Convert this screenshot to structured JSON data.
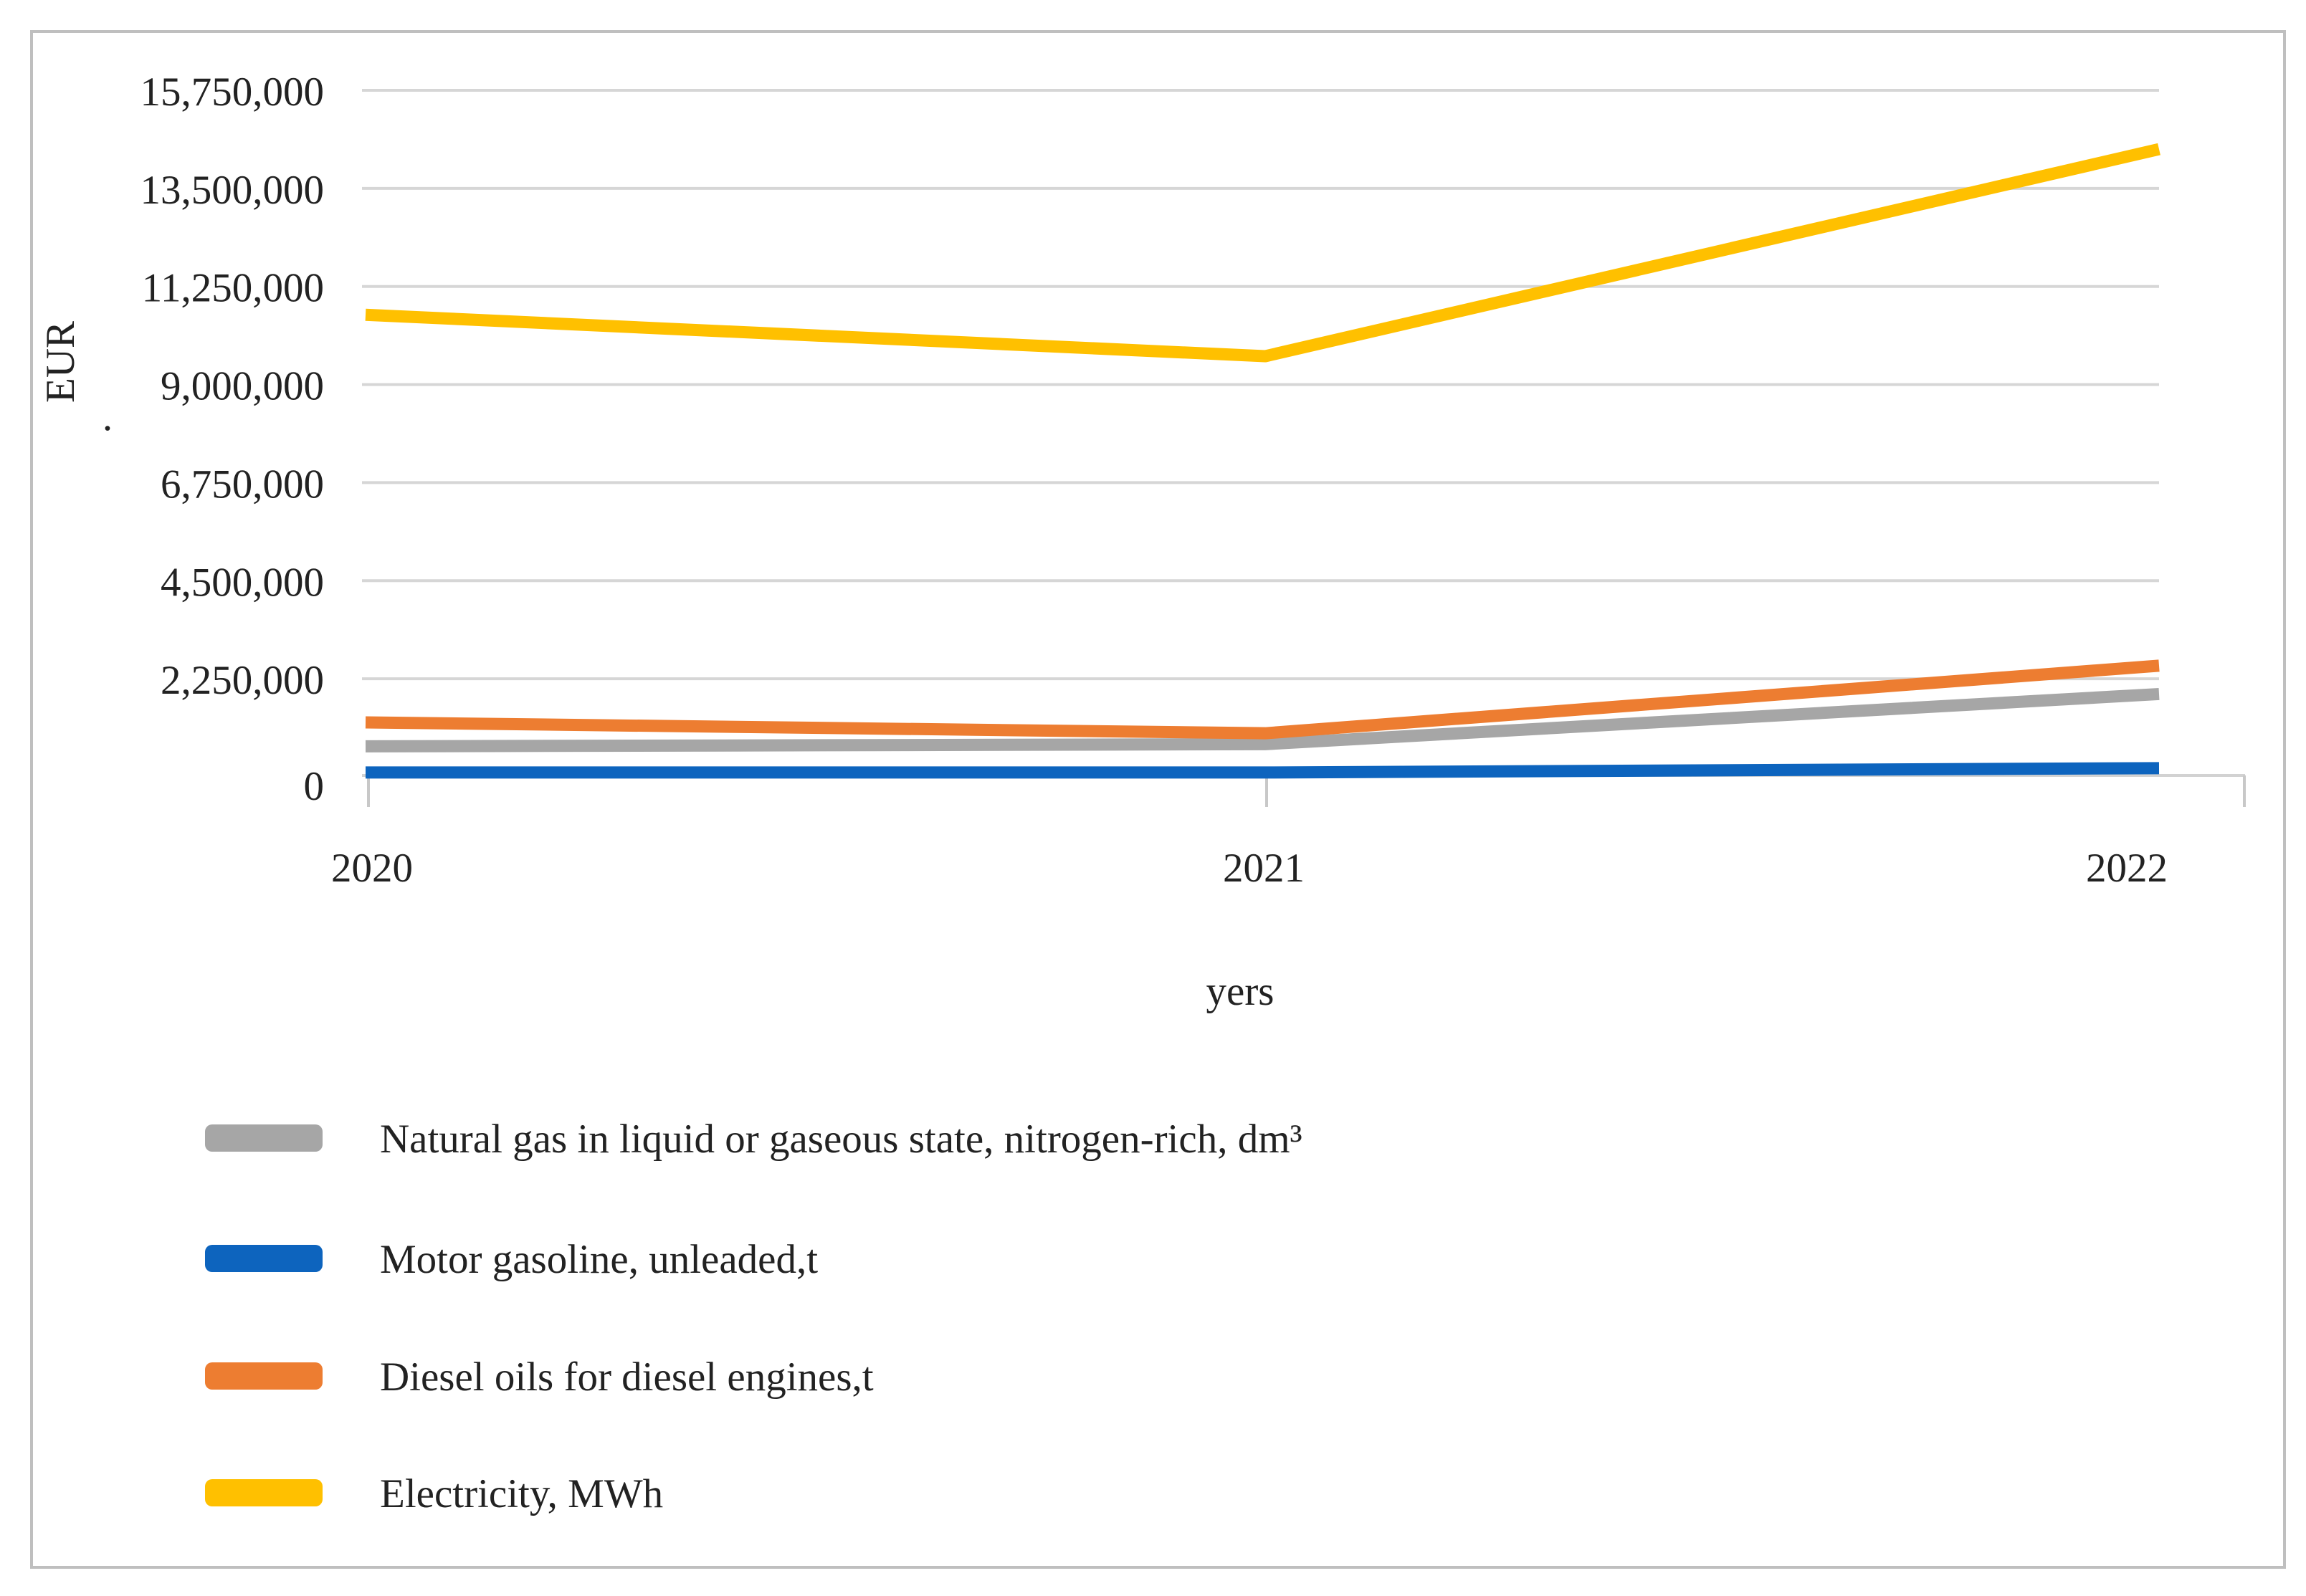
{
  "figure": {
    "background": "#ffffff",
    "border_color": "#bfbfbf"
  },
  "chart_data": {
    "type": "line",
    "title": "",
    "xlabel": "yers",
    "ylabel": "EUR",
    "ylabel_suffix_dot": ".",
    "categories": [
      "2020",
      "2021",
      "2022"
    ],
    "y_tick_labels": [
      "15,750,000",
      "13,500,000",
      "11,250,000",
      "9,000,000",
      "6,750,000",
      "4,500,000",
      "2,250,000",
      "0"
    ],
    "y_tick_values": [
      15750000,
      13500000,
      11250000,
      9000000,
      6750000,
      4500000,
      2250000,
      0
    ],
    "ylim": [
      0,
      15750000
    ],
    "y_gridline_step": 2250000,
    "grid": true,
    "legend_position": "bottom-left",
    "gridline_color": "#d6d6d6",
    "axis_line_color": "#d2d2d2",
    "tick_color": "#c8c8c8",
    "text_color": "#222222",
    "series": [
      {
        "name": "Natural gas in liquid or gaseous state, nitrogen-rich, dm³",
        "color": "#a6a6a6",
        "values": [
          700000,
          750000,
          1900000
        ]
      },
      {
        "name": "Motor gasoline, unleaded,t",
        "color": "#0d64be",
        "values": [
          100000,
          100000,
          200000
        ]
      },
      {
        "name": "Diesel oils for diesel engines,t",
        "color": "#ed7d31",
        "values": [
          1250000,
          1000000,
          2550000
        ]
      },
      {
        "name": "Electricity, MWh",
        "color": "#ffc000",
        "values": [
          10600000,
          9650000,
          14400000
        ]
      }
    ],
    "plot_draw_order": [
      0,
      1,
      2,
      3
    ]
  }
}
